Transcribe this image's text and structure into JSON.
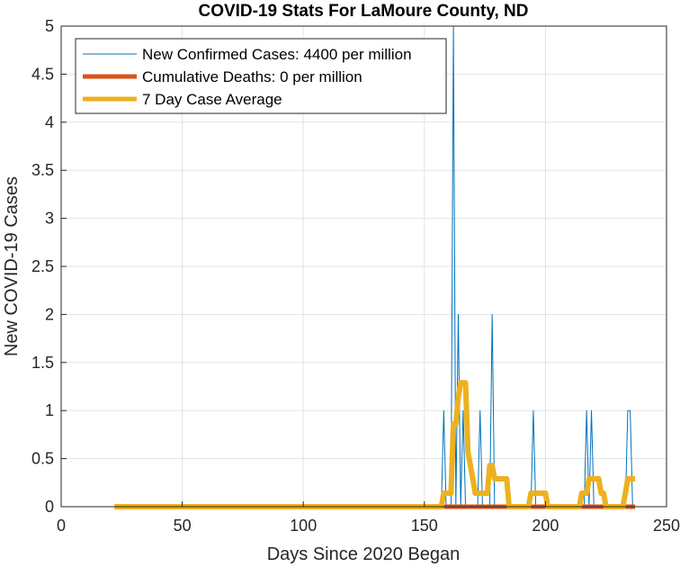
{
  "chart_data": {
    "type": "line",
    "title": "COVID-19 Stats For LaMoure County, ND",
    "xlabel": "Days Since 2020 Began",
    "ylabel": "New COVID-19 Cases",
    "xlim": [
      0,
      250
    ],
    "ylim": [
      0,
      5
    ],
    "xticks": [
      "0",
      "50",
      "100",
      "150",
      "200",
      "250"
    ],
    "yticks": [
      "0",
      "0.5",
      "1",
      "1.5",
      "2",
      "2.5",
      "3",
      "3.5",
      "4",
      "4.5",
      "5"
    ],
    "grid": true,
    "legend_placement": "top-left",
    "series": [
      {
        "name": "New Confirmed Cases: 4400 per million",
        "color": "#0072BD",
        "points": [
          [
            22,
            0
          ],
          [
            157,
            0
          ],
          [
            158,
            1
          ],
          [
            159,
            0
          ],
          [
            161,
            0
          ],
          [
            162,
            5
          ],
          [
            163,
            0
          ],
          [
            164,
            2
          ],
          [
            165,
            0
          ],
          [
            166,
            1
          ],
          [
            167,
            0
          ],
          [
            172,
            0
          ],
          [
            173,
            1
          ],
          [
            174,
            0
          ],
          [
            177,
            0
          ],
          [
            178,
            2
          ],
          [
            179,
            0
          ],
          [
            194,
            0
          ],
          [
            195,
            1
          ],
          [
            196,
            0
          ],
          [
            216,
            0
          ],
          [
            217,
            1
          ],
          [
            218,
            0
          ],
          [
            219,
            1
          ],
          [
            220,
            0
          ],
          [
            233,
            0
          ],
          [
            234,
            1
          ],
          [
            235,
            1
          ],
          [
            236,
            0
          ],
          [
            237,
            0
          ]
        ]
      },
      {
        "name": "Cumulative Deaths: 0 per million",
        "color": "#D95319",
        "points": [
          [
            158,
            0
          ],
          [
            237,
            0
          ]
        ]
      },
      {
        "name": "7 Day Case Average",
        "color": "#EDB120",
        "points": [
          [
            22,
            0
          ],
          [
            157,
            0
          ],
          [
            158,
            0.14
          ],
          [
            160,
            0.14
          ],
          [
            161,
            0.14
          ],
          [
            162,
            0.86
          ],
          [
            163,
            0.86
          ],
          [
            164,
            1.14
          ],
          [
            165,
            1.29
          ],
          [
            166,
            1.29
          ],
          [
            167,
            1.29
          ],
          [
            168,
            0.57
          ],
          [
            169,
            0.43
          ],
          [
            170,
            0.29
          ],
          [
            171,
            0.14
          ],
          [
            172,
            0.14
          ],
          [
            173,
            0.14
          ],
          [
            174,
            0.14
          ],
          [
            175,
            0.14
          ],
          [
            176,
            0.14
          ],
          [
            177,
            0.43
          ],
          [
            178,
            0.43
          ],
          [
            179,
            0.29
          ],
          [
            180,
            0.29
          ],
          [
            183,
            0.29
          ],
          [
            184,
            0.29
          ],
          [
            185,
            0
          ],
          [
            193,
            0
          ],
          [
            194,
            0.14
          ],
          [
            196,
            0.14
          ],
          [
            199,
            0.14
          ],
          [
            200,
            0.14
          ],
          [
            201,
            0
          ],
          [
            214,
            0
          ],
          [
            215,
            0.14
          ],
          [
            216,
            0.14
          ],
          [
            217,
            0.14
          ],
          [
            218,
            0.29
          ],
          [
            219,
            0.29
          ],
          [
            222,
            0.29
          ],
          [
            223,
            0.14
          ],
          [
            224,
            0.14
          ],
          [
            225,
            0
          ],
          [
            232,
            0
          ],
          [
            233,
            0.14
          ],
          [
            234,
            0.29
          ],
          [
            237,
            0.29
          ]
        ]
      }
    ]
  }
}
